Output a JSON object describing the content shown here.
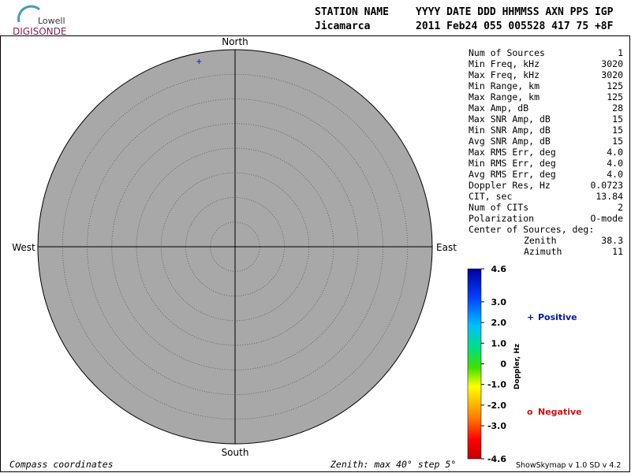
{
  "header": {
    "logo_top": "Lowell",
    "logo_bottom": "DIGISONDE",
    "row1": [
      "STATION NAME",
      "YYYY DATE  DDD HHMMSS AXN PPS IGP"
    ],
    "row2": [
      "Jicamarca",
      "2011 Feb24 055 005528 417  75 +8F"
    ]
  },
  "chart_data": {
    "type": "skymap",
    "compass": {
      "north": "North",
      "south": "South",
      "east": "East",
      "west": "West"
    },
    "rlim": [
      0,
      40
    ],
    "rticks": [
      5,
      10,
      15,
      20,
      25,
      30,
      35
    ],
    "points": [
      {
        "zenith": 38.3,
        "azimuth": 349
      }
    ],
    "point_color": "#1030c0",
    "colorbar": {
      "label": "Doppler, Hz",
      "clim": [
        -4.6,
        4.6
      ],
      "ticks": [
        4.6,
        {
          "value": 3,
          "label": "3.0"
        },
        {
          "value": 2,
          "label": "2.0"
        },
        {
          "value": 1,
          "label": "1.0"
        },
        0,
        {
          "value": -1,
          "label": "-1.0"
        },
        {
          "value": -2,
          "label": "-2.0"
        },
        {
          "value": -3,
          "label": "-3.0"
        },
        -4.6
      ]
    },
    "legend": [
      {
        "symbol": "+",
        "name": "Positive",
        "color": "#0018b0"
      },
      {
        "symbol": "o",
        "name": "Negative",
        "color": "#d01010"
      }
    ]
  },
  "stats": [
    [
      "Num of Sources",
      "1"
    ],
    [
      "Min Freq, kHz",
      "3020"
    ],
    [
      "Max Freq, kHz",
      "3020"
    ],
    [
      "Min Range, km",
      "125"
    ],
    [
      "Max Range, km",
      "125"
    ],
    [
      "Max Amp, dB",
      "28"
    ],
    [
      "Max SNR Amp, dB",
      "15"
    ],
    [
      "Min SNR Amp, dB",
      "15"
    ],
    [
      "Avg SNR Amp, dB",
      "15"
    ],
    [
      "Max RMS Err, deg",
      "4.0"
    ],
    [
      "Min RMS Err, deg",
      "4.0"
    ],
    [
      "Avg RMS Err, deg",
      "4.0"
    ],
    [
      "Doppler Res, Hz",
      "0.0723"
    ],
    [
      "CIT, sec",
      "13.84"
    ],
    [
      "Num of CITs",
      "2"
    ],
    [
      "Polarization",
      "O-mode"
    ],
    [
      "Center of Sources, deg:"
    ],
    [
      "Zenith",
      "38.3"
    ],
    [
      "Azimuth",
      "11"
    ]
  ],
  "footer": {
    "left": "Compass coordinates",
    "middle": "Zenith: max 40°  step 5°",
    "right": "ShowSkymap v 1.0  SD v 4.2"
  }
}
